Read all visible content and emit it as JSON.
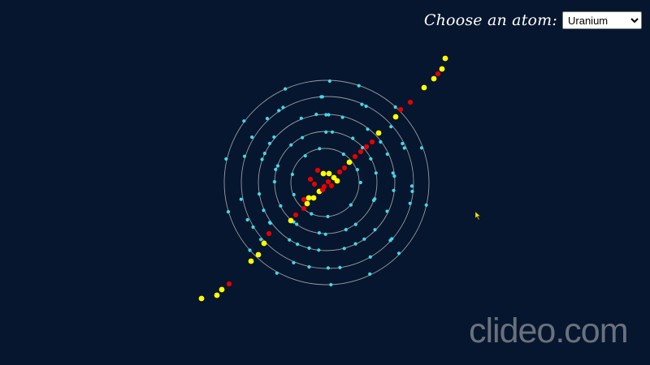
{
  "control": {
    "label": "Choose an atom:",
    "selected": "Uranium",
    "options": [
      "Uranium"
    ]
  },
  "watermark": "clideo.com",
  "colors": {
    "background": "#06162e",
    "orbit": "#c8c8c8",
    "electron": "#3fd9e6",
    "proton": "#e60000",
    "neutron": "#ffff00"
  },
  "icons": {
    "cursor": "mouse-pointer-icon"
  }
}
